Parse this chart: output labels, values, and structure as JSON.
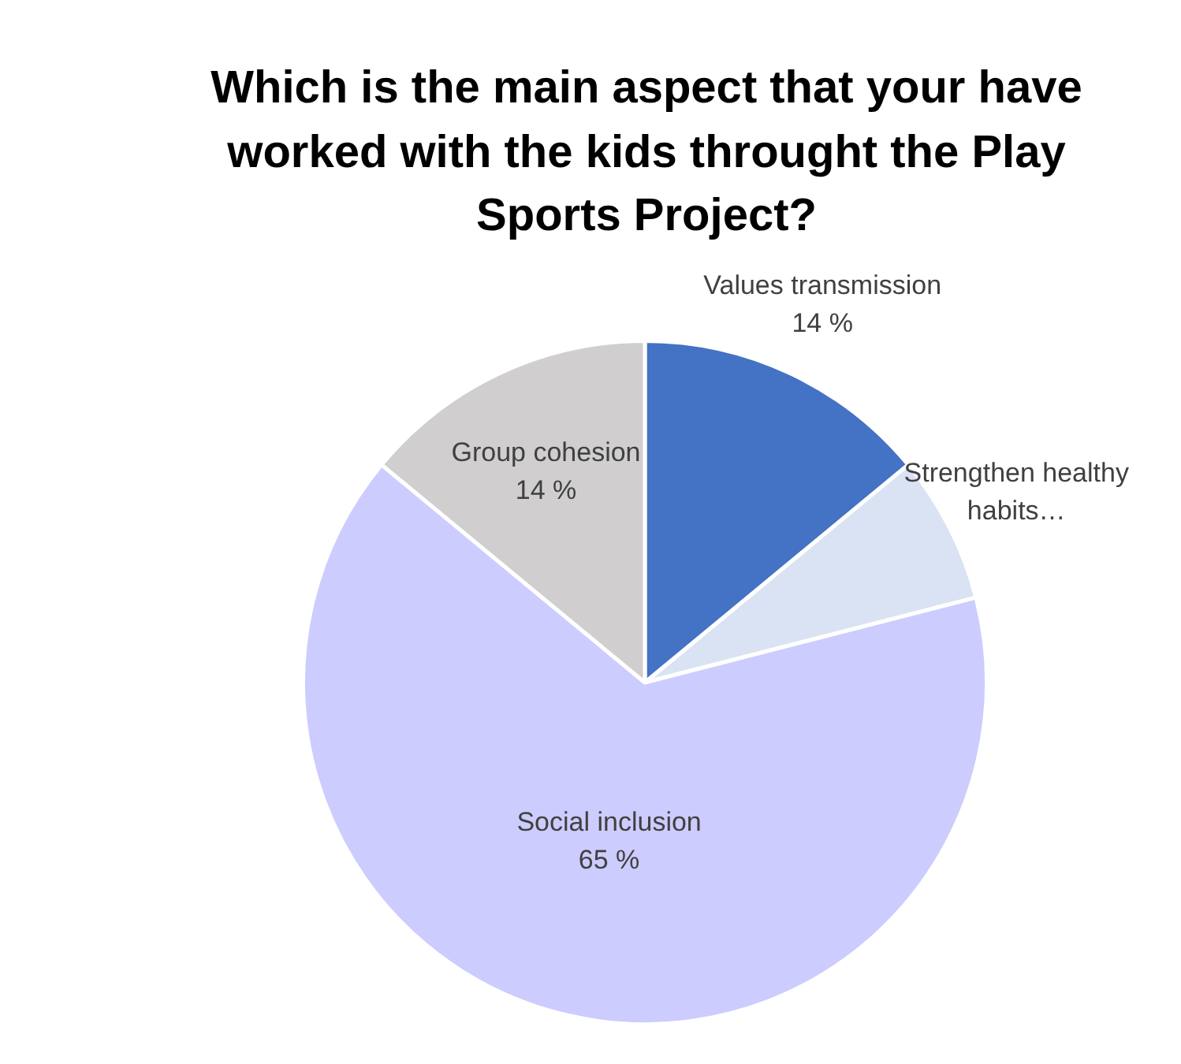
{
  "chart_data": {
    "type": "pie",
    "title": "Which is the main aspect that your have worked with the kids throught the Play Sports Project?",
    "categories": [
      "Values transmission",
      "Strengthen healthy habits…",
      "Social inclusion",
      "Group cohesion"
    ],
    "values": [
      14,
      7,
      65,
      14
    ],
    "colors": [
      "#4472c4",
      "#dae3f3",
      "#ccccff",
      "#d0cece"
    ],
    "value_labels": [
      "14 %",
      null,
      "65 %",
      "14 %"
    ],
    "legend": false
  }
}
